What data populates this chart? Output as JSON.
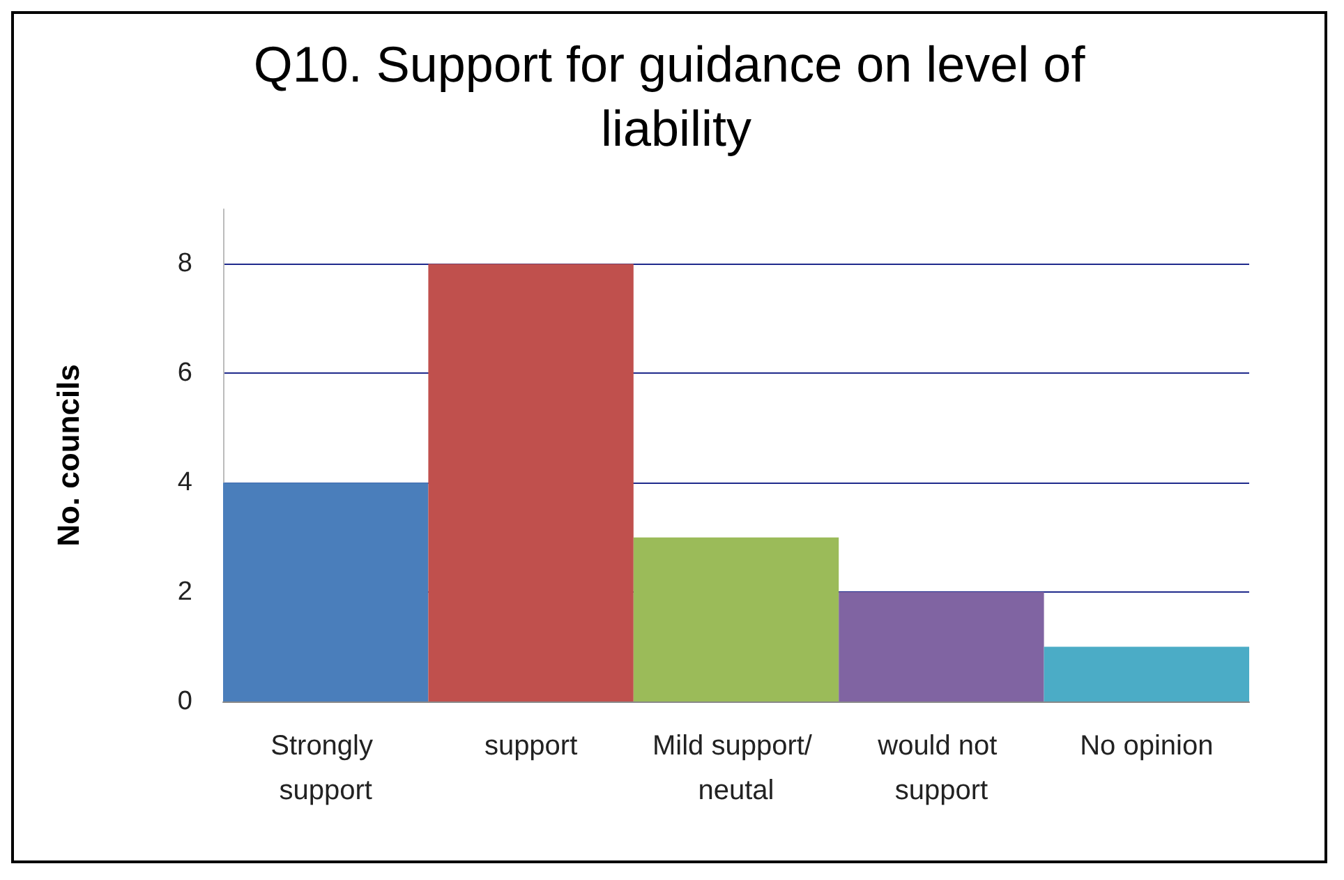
{
  "chart_data": {
    "type": "bar",
    "title": "Q10. Support for guidance on level of liability",
    "ylabel": "No. councils",
    "categories": [
      "Strongly support",
      "support",
      "Mild support/ neutal",
      "would not support",
      "No opinion"
    ],
    "values": [
      4,
      8,
      3,
      2,
      1
    ],
    "colors": [
      "#4a7ebb",
      "#c0504d",
      "#9bbb59",
      "#8064a2",
      "#4bacc6"
    ],
    "ylim": [
      0,
      9
    ],
    "yticks": [
      0,
      2,
      4,
      6,
      8
    ],
    "grid": "y"
  }
}
